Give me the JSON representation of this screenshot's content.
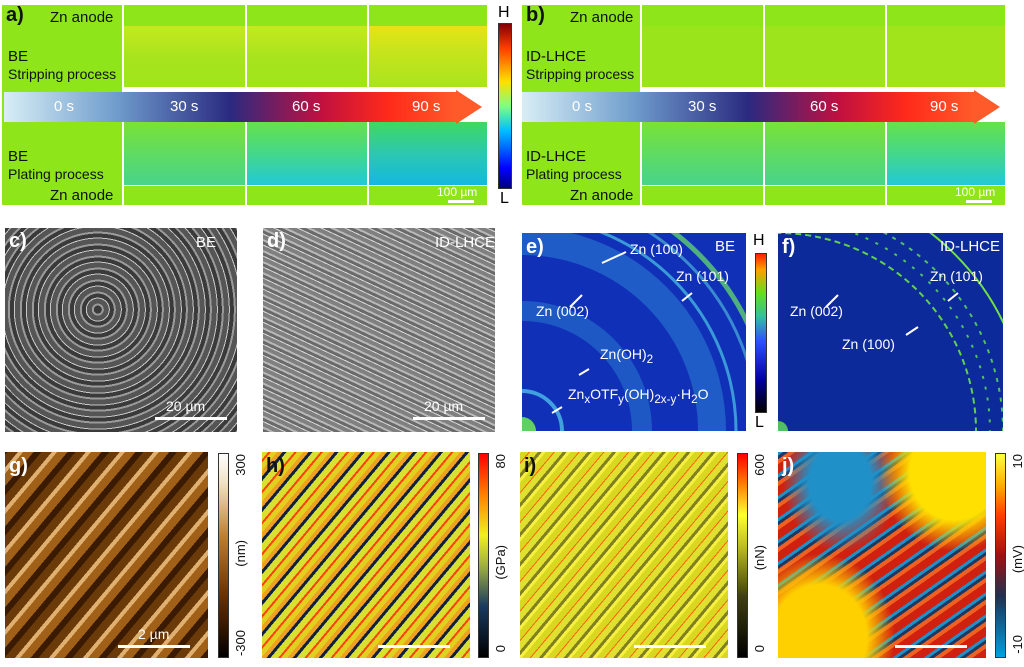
{
  "panel_a": {
    "label": "a)",
    "anode_top": "Zn anode",
    "strip_title": "BE",
    "strip_sub": "Stripping process",
    "plate_title": "BE",
    "plate_sub": "Plating process",
    "anode_bottom": "Zn anode",
    "scale": "100 µm"
  },
  "panel_b": {
    "label": "b)",
    "anode_top": "Zn anode",
    "strip_title": "ID-LHCE",
    "strip_sub": "Stripping process",
    "plate_title": "ID-LHCE",
    "plate_sub": "Plating process",
    "anode_bottom": "Zn anode",
    "scale": "100 µm"
  },
  "time_arrow": [
    "0 s",
    "30 s",
    "60 s",
    "90 s"
  ],
  "colorbar_ab": {
    "high": "H",
    "low": "L"
  },
  "panel_c": {
    "label": "c)",
    "title": "BE",
    "scale": "20 µm"
  },
  "panel_d": {
    "label": "d)",
    "title": "ID-LHCE",
    "scale": "20 µm"
  },
  "panel_e": {
    "label": "e)",
    "title": "BE",
    "peaks": [
      "Zn (100)",
      "Zn (101)",
      "Zn (002)"
    ],
    "oh": "Zn(OH)",
    "oh_sub": "2",
    "salt": {
      "a": "Zn",
      "b": "x",
      "c": "OTF",
      "d": "y",
      "e": "(OH)",
      "f": "2x-y",
      "g": "·H",
      "h": "2",
      "i": "O"
    }
  },
  "colorbar_ef": {
    "high": "H",
    "low": "L"
  },
  "panel_f": {
    "label": "f)",
    "title": "ID-LHCE",
    "peaks": [
      "Zn (101)",
      "Zn (002)",
      "Zn (100)"
    ]
  },
  "panel_g": {
    "label": "g)",
    "scale": "2 µm",
    "cb_max": "300",
    "cb_min": "-300",
    "cb_unit": "(nm)"
  },
  "panel_h": {
    "label": "h)",
    "cb_max": "80",
    "cb_min": "0",
    "cb_unit": "(GPa)"
  },
  "panel_i": {
    "label": "i)",
    "cb_max": "600",
    "cb_min": "0",
    "cb_unit": "(nN)"
  },
  "panel_j": {
    "label": "j)",
    "cb_max": "10",
    "cb_min": "-10",
    "cb_unit": "(mV)"
  }
}
